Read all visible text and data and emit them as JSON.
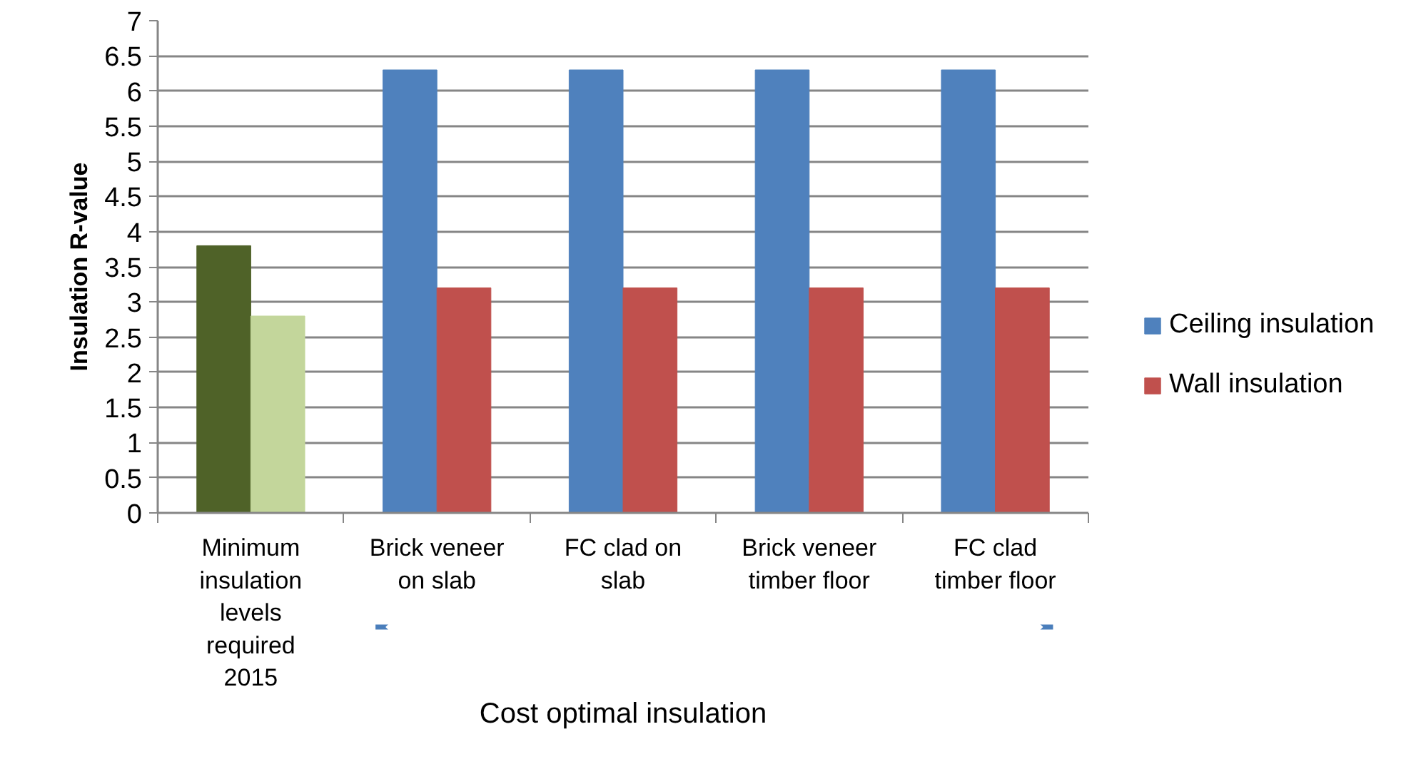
{
  "chart_data": {
    "type": "bar",
    "ylabel": "Insulation R-value",
    "categories": [
      "Minimum insulation levels required 2015",
      "Brick veneer on slab",
      "FC clad on slab",
      "Brick veneer timber floor",
      "FC clad timber floor"
    ],
    "series": [
      {
        "name": "Ceiling insulation",
        "color": "#4f81bd",
        "colors": [
          "#4f6228",
          "#4f81bd",
          "#4f81bd",
          "#4f81bd",
          "#4f81bd"
        ],
        "values": [
          3.8,
          6.3,
          6.3,
          6.3,
          6.3
        ]
      },
      {
        "name": "Wall insulation",
        "color": "#c0504d",
        "colors": [
          "#c3d69b",
          "#c0504d",
          "#c0504d",
          "#c0504d",
          "#c0504d"
        ],
        "values": [
          2.8,
          3.2,
          3.2,
          3.2,
          3.2
        ]
      }
    ],
    "ylim": [
      0,
      7
    ],
    "yticks": [
      0,
      0.5,
      1,
      1.5,
      2,
      2.5,
      3,
      3.5,
      4,
      4.5,
      5,
      5.5,
      6,
      6.5,
      7
    ],
    "grid": "y",
    "legend": "right",
    "annotations": [
      "Cost optimal insulation"
    ]
  }
}
